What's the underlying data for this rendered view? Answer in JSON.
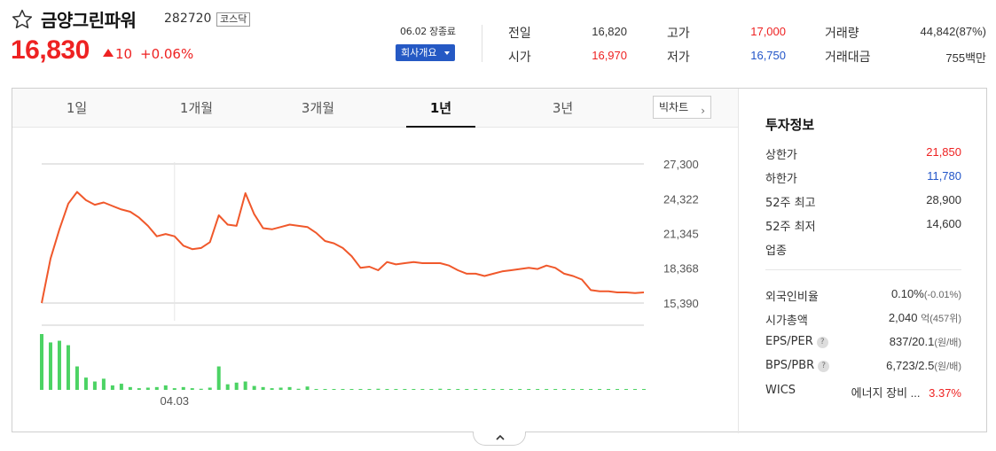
{
  "stock": {
    "name": "금양그린파워",
    "code": "282720",
    "market": "코스닥",
    "price": "16,830",
    "change": "10",
    "change_pct": "+0.06%"
  },
  "status": {
    "market_status": "06.02 장종료",
    "company_button": "회사개요"
  },
  "quote": {
    "prev_close_label": "전일",
    "prev_close": "16,820",
    "open_label": "시가",
    "open": "16,970",
    "high_label": "고가",
    "high": "17,000",
    "low_label": "저가",
    "low": "16,750",
    "volume_label": "거래량",
    "volume": "44,842(87%)",
    "amount_label": "거래대금",
    "amount": "755백만"
  },
  "tabs": [
    {
      "label": "1일"
    },
    {
      "label": "1개월"
    },
    {
      "label": "3개월"
    },
    {
      "label": "1년"
    },
    {
      "label": "3년"
    }
  ],
  "active_tab": "1년",
  "bigchart_label": "빅차트",
  "chart_data": {
    "type": "line",
    "y_ticks": [
      "27,300",
      "24,322",
      "21,345",
      "18,368",
      "15,390"
    ],
    "y_tick_values": [
      27300,
      24322,
      21345,
      18368,
      15390
    ],
    "ylim": [
      15390,
      27300
    ],
    "x_tick_label": "04.03",
    "x_tick_index": 15,
    "grid": true,
    "colors": {
      "line": "#f0582b",
      "volume": "#4cd364",
      "grid": "#e6e6e6"
    },
    "values": [
      15390,
      19200,
      21700,
      23900,
      24900,
      24200,
      23800,
      24000,
      23700,
      23400,
      23200,
      22700,
      22000,
      21100,
      21300,
      21100,
      20300,
      20000,
      20100,
      20600,
      22900,
      22100,
      22000,
      24800,
      23000,
      21800,
      21700,
      21900,
      22100,
      22000,
      21900,
      21400,
      20700,
      20500,
      20100,
      19400,
      18400,
      18500,
      18200,
      18900,
      18700,
      18800,
      18900,
      18800,
      18800,
      18800,
      18600,
      18200,
      17900,
      17900,
      17700,
      17900,
      18100,
      18200,
      18300,
      18400,
      18300,
      18600,
      18400,
      17900,
      17700,
      17400,
      16500,
      16400,
      16400,
      16300,
      16300,
      16250,
      16300
    ],
    "volumes": [
      100,
      85,
      88,
      80,
      42,
      22,
      15,
      20,
      8,
      11,
      5,
      3,
      4,
      5,
      8,
      3,
      5,
      3,
      2,
      4,
      42,
      10,
      13,
      15,
      7,
      5,
      3,
      4,
      5,
      2,
      6,
      1,
      1,
      1,
      1,
      1,
      1,
      1,
      2,
      1,
      1,
      1,
      1,
      1,
      1,
      2,
      1,
      1,
      1,
      1,
      1,
      1,
      1,
      1,
      1,
      1,
      1,
      1,
      1,
      1,
      1,
      1,
      1,
      1,
      1,
      1,
      1,
      1,
      1
    ]
  },
  "invest": {
    "title": "투자정보",
    "upper_limit_label": "상한가",
    "upper_limit": "21,850",
    "lower_limit_label": "하한가",
    "lower_limit": "11,780",
    "w52_high_label": "52주 최고",
    "w52_high": "28,900",
    "w52_low_label": "52주 최저",
    "w52_low": "14,600",
    "industry_label": "업종",
    "foreign_label": "외국인비율",
    "foreign": "0.10%",
    "foreign_change": "(-0.01%)",
    "mcap_label": "시가총액",
    "mcap": "2,040",
    "mcap_unit": "억",
    "mcap_sub": "(457위)",
    "eps_per_label": "EPS/PER",
    "eps_per": "837/20.1",
    "eps_per_unit": "(원/배)",
    "bps_pbr_label": "BPS/PBR",
    "bps_pbr": "6,723/2.5",
    "bps_pbr_unit": "(원/배)",
    "wics_label": "WICS",
    "wics": "에너지 장비 ...",
    "wics_pct": "3.37%"
  },
  "colors": {
    "up": "#e22222",
    "down": "#2255c8",
    "accent": "#2559c4"
  }
}
